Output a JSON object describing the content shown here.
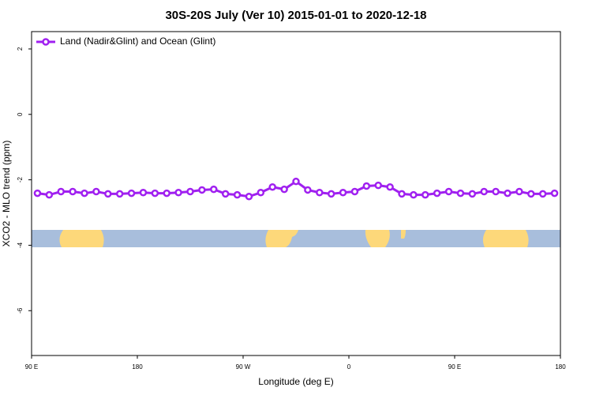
{
  "chart_data": {
    "type": "line",
    "title": "30S-20S July (Ver 10)   2015-01-01 to 2020-12-18",
    "xlabel": "Longitude (deg E)",
    "ylabel": "XCO2 - MLO trend (ppm)",
    "x": [
      95,
      105,
      115,
      125,
      135,
      145,
      155,
      165,
      175,
      185,
      195,
      205,
      215,
      225,
      235,
      245,
      255,
      265,
      275,
      285,
      295,
      305,
      315,
      325,
      335,
      345,
      355,
      365,
      375,
      385,
      395,
      405,
      415,
      425,
      435,
      445,
      455,
      465,
      475,
      485,
      495,
      505,
      515,
      525,
      535
    ],
    "series": [
      {
        "name": "Land (Nadir&Glint) and Ocean (Glint)",
        "color": "#a020f0",
        "values": [
          -2.41,
          -2.46,
          -2.36,
          -2.36,
          -2.41,
          -2.36,
          -2.43,
          -2.43,
          -2.41,
          -2.39,
          -2.41,
          -2.41,
          -2.39,
          -2.36,
          -2.31,
          -2.29,
          -2.43,
          -2.46,
          -2.51,
          -2.39,
          -2.22,
          -2.29,
          -2.05,
          -2.31,
          -2.39,
          -2.43,
          -2.39,
          -2.36,
          -2.19,
          -2.17,
          -2.22,
          -2.43,
          -2.46,
          -2.46,
          -2.41,
          -2.36,
          -2.41,
          -2.43,
          -2.36,
          -2.36,
          -2.41,
          -2.36,
          -2.43,
          -2.43,
          -2.41
        ]
      }
    ],
    "xlim": [
      90,
      540
    ],
    "xticks": [
      {
        "value": 90,
        "label": "90 E"
      },
      180,
      {
        "value": 270,
        "label": "90 W"
      },
      {
        "value": 360,
        "label": "0"
      },
      {
        "value": 450,
        "label": "90 E"
      },
      {
        "value": 540,
        "label": "180"
      }
    ],
    "ylim": [
      -7.37,
      2.53
    ],
    "yticks": [
      -6,
      -4,
      -2,
      0,
      2
    ],
    "legend": "top-left"
  }
}
